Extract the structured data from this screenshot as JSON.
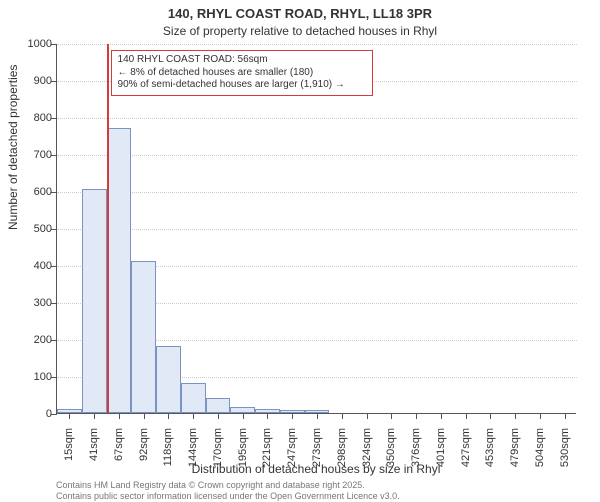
{
  "titles": {
    "main": "140, RHYL COAST ROAD, RHYL, LL18 3PR",
    "sub": "Size of property relative to detached houses in Rhyl"
  },
  "axes": {
    "ylabel": "Number of detached properties",
    "xlabel": "Distribution of detached houses by size in Rhyl",
    "ylim": [
      0,
      1000
    ],
    "ytick_step": 100,
    "yticks": [
      0,
      100,
      200,
      300,
      400,
      500,
      600,
      700,
      800,
      900,
      1000
    ],
    "xticks": [
      "15sqm",
      "41sqm",
      "67sqm",
      "92sqm",
      "118sqm",
      "144sqm",
      "170sqm",
      "195sqm",
      "221sqm",
      "247sqm",
      "273sqm",
      "298sqm",
      "324sqm",
      "350sqm",
      "376sqm",
      "401sqm",
      "427sqm",
      "453sqm",
      "479sqm",
      "504sqm",
      "530sqm"
    ]
  },
  "style": {
    "bar_fill": "#e2e9f6",
    "bar_border": "#7a93c4",
    "grid_color": "#cccccc",
    "background": "#ffffff",
    "marker_color": "#d43b3b",
    "text_color": "#333333",
    "title_fontsize": 13,
    "sub_fontsize": 12,
    "axis_fontsize": 12,
    "tick_fontsize": 11,
    "anno_fontsize": 10
  },
  "chart": {
    "type": "histogram",
    "n_bins": 21,
    "values": [
      10,
      605,
      770,
      410,
      180,
      80,
      40,
      15,
      12,
      8,
      7,
      0,
      0,
      0,
      0,
      0,
      0,
      0,
      0,
      0,
      0
    ],
    "marker": {
      "bin_index_fractional": 2.0,
      "label_line1": "140 RHYL COAST ROAD: 56sqm",
      "label_line2": "← 8% of detached houses are smaller (180)",
      "label_line3": "90% of semi-detached houses are larger (1,910) →"
    }
  },
  "footer": {
    "line1": "Contains HM Land Registry data © Crown copyright and database right 2025.",
    "line2": "Contains public sector information licensed under the Open Government Licence v3.0."
  }
}
